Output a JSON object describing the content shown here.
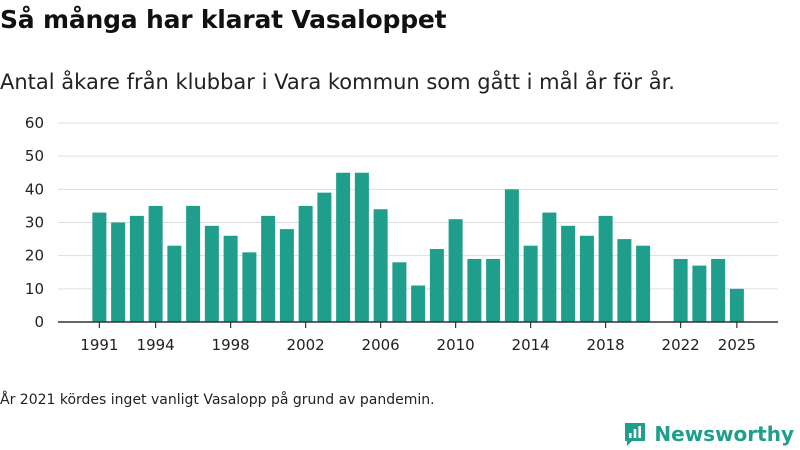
{
  "title": "Så många har klarat Vasaloppet",
  "subtitle": "Antal åkare från klubbar i Vara kommun som gått i mål år för år.",
  "footnote": "År 2021 kördes inget vanligt Vasalopp på grund av pandemin.",
  "brand": {
    "name": "Newsworthy",
    "icon": "newsworthy-logo-icon",
    "color": "#1f9e8c"
  },
  "chart_data": {
    "type": "bar",
    "title": "Så många har klarat Vasaloppet",
    "subtitle": "Antal åkare från klubbar i Vara kommun som gått i mål år för år.",
    "categories": [
      1991,
      1992,
      1993,
      1994,
      1995,
      1996,
      1997,
      1998,
      1999,
      2000,
      2001,
      2002,
      2003,
      2004,
      2005,
      2006,
      2007,
      2008,
      2009,
      2010,
      2011,
      2012,
      2013,
      2014,
      2015,
      2016,
      2017,
      2018,
      2019,
      2020,
      2021,
      2022,
      2023,
      2024,
      2025
    ],
    "values": [
      33,
      30,
      32,
      35,
      23,
      35,
      29,
      26,
      21,
      32,
      28,
      35,
      39,
      45,
      45,
      34,
      18,
      11,
      22,
      31,
      19,
      19,
      40,
      23,
      33,
      29,
      26,
      32,
      25,
      23,
      null,
      19,
      17,
      19,
      10
    ],
    "x_tick_labels": [
      "1991",
      "1994",
      "1998",
      "2002",
      "2006",
      "2010",
      "2014",
      "2018",
      "2022",
      "2025"
    ],
    "y_ticks": [
      0,
      10,
      20,
      30,
      40,
      50,
      60
    ],
    "ylim": [
      0,
      60
    ],
    "xlabel": "",
    "ylabel": "",
    "grid": true,
    "bar_color": "#1f9e8c",
    "grid_color": "#dddddd",
    "axis_color": "#333333"
  }
}
